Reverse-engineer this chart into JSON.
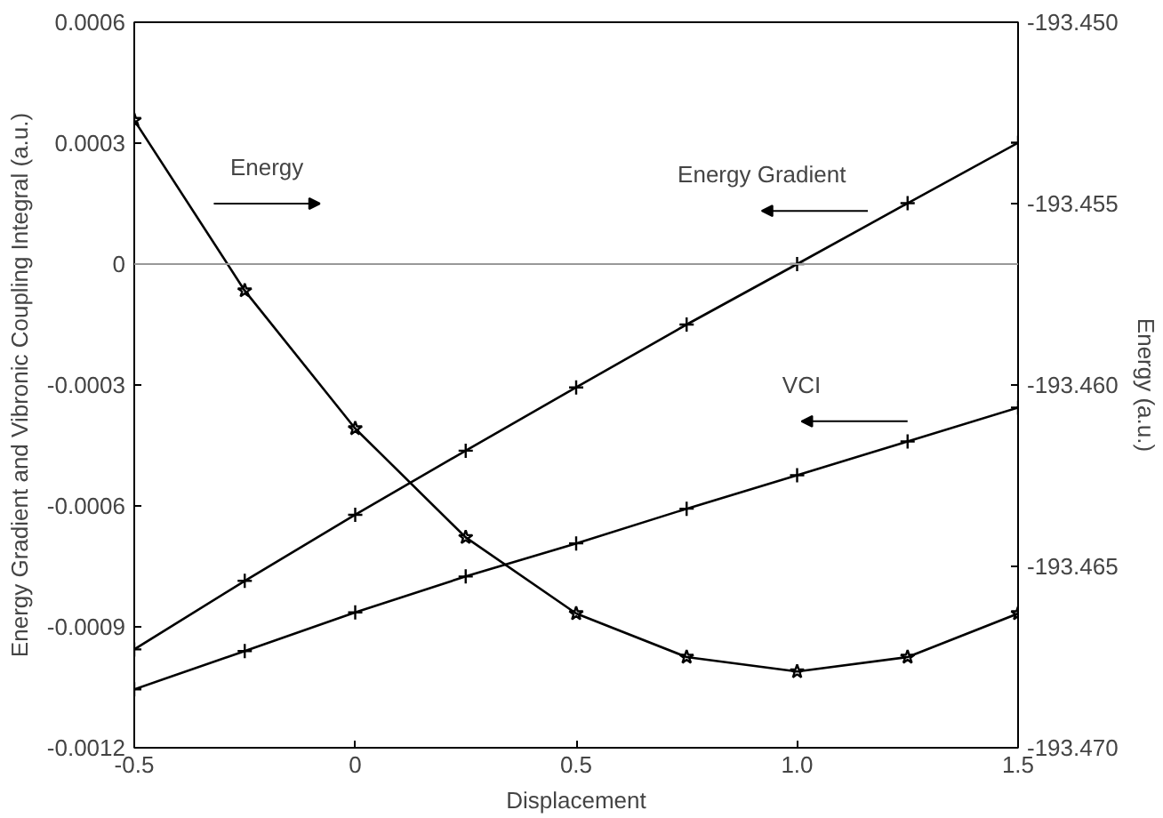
{
  "chart_data": {
    "type": "line",
    "xlabel": "Displacement",
    "ylabel": "Energy Gradient and Vibronic Coupling Integral (a.u.)",
    "y2label": "Energy (a.u.)",
    "x": [
      -0.5,
      -0.25,
      0,
      0.25,
      0.5,
      0.75,
      1.0,
      1.25,
      1.5
    ],
    "series": [
      {
        "color": "#000000",
        "axis": "y2",
        "marker": "star",
        "values": [
          -193.4527,
          -193.4574,
          -193.4612,
          -193.4642,
          -193.4663,
          -193.4675,
          -193.4679,
          -193.4675,
          -193.4663
        ]
      },
      {
        "color": "#000000",
        "marker": "cross",
        "values": [
          -0.000956,
          -0.000786,
          -0.000622,
          -0.000463,
          -0.000306,
          -0.00015,
          0.0,
          0.000151,
          0.000301
        ]
      },
      {
        "color": "#000000",
        "marker": "cross",
        "values": [
          -0.001055,
          -0.00096,
          -0.000864,
          -0.000775,
          -0.000693,
          -0.000607,
          -0.000524,
          -0.00044,
          -0.000356
        ]
      }
    ],
    "annotations": [
      "Energy",
      "Energy Gradient",
      "VCI"
    ],
    "ref_lines": [
      {
        "axis": "y",
        "value": 0,
        "color": "#999999"
      }
    ],
    "xlim": [
      -0.5,
      1.5
    ],
    "xticks": [
      -0.5,
      0,
      0.5,
      {
        "value": 1.0,
        "label": "1.0"
      },
      1.5
    ],
    "ylim": [
      -0.0012,
      0.0006
    ],
    "yticks": [
      -0.0012,
      -0.0009,
      -0.0006,
      -0.0003,
      0,
      0.0003,
      0.0006
    ],
    "y2lim": [
      -193.47,
      -193.45
    ],
    "y2ticks": [
      {
        "value": -193.47,
        "label": "-193.470"
      },
      {
        "value": -193.465,
        "label": "-193.465"
      },
      {
        "value": -193.46,
        "label": "-193.460"
      },
      {
        "value": -193.455,
        "label": "-193.455"
      },
      {
        "value": -193.45,
        "label": "-193.450"
      }
    ],
    "grid": false,
    "line_style": "solid"
  }
}
